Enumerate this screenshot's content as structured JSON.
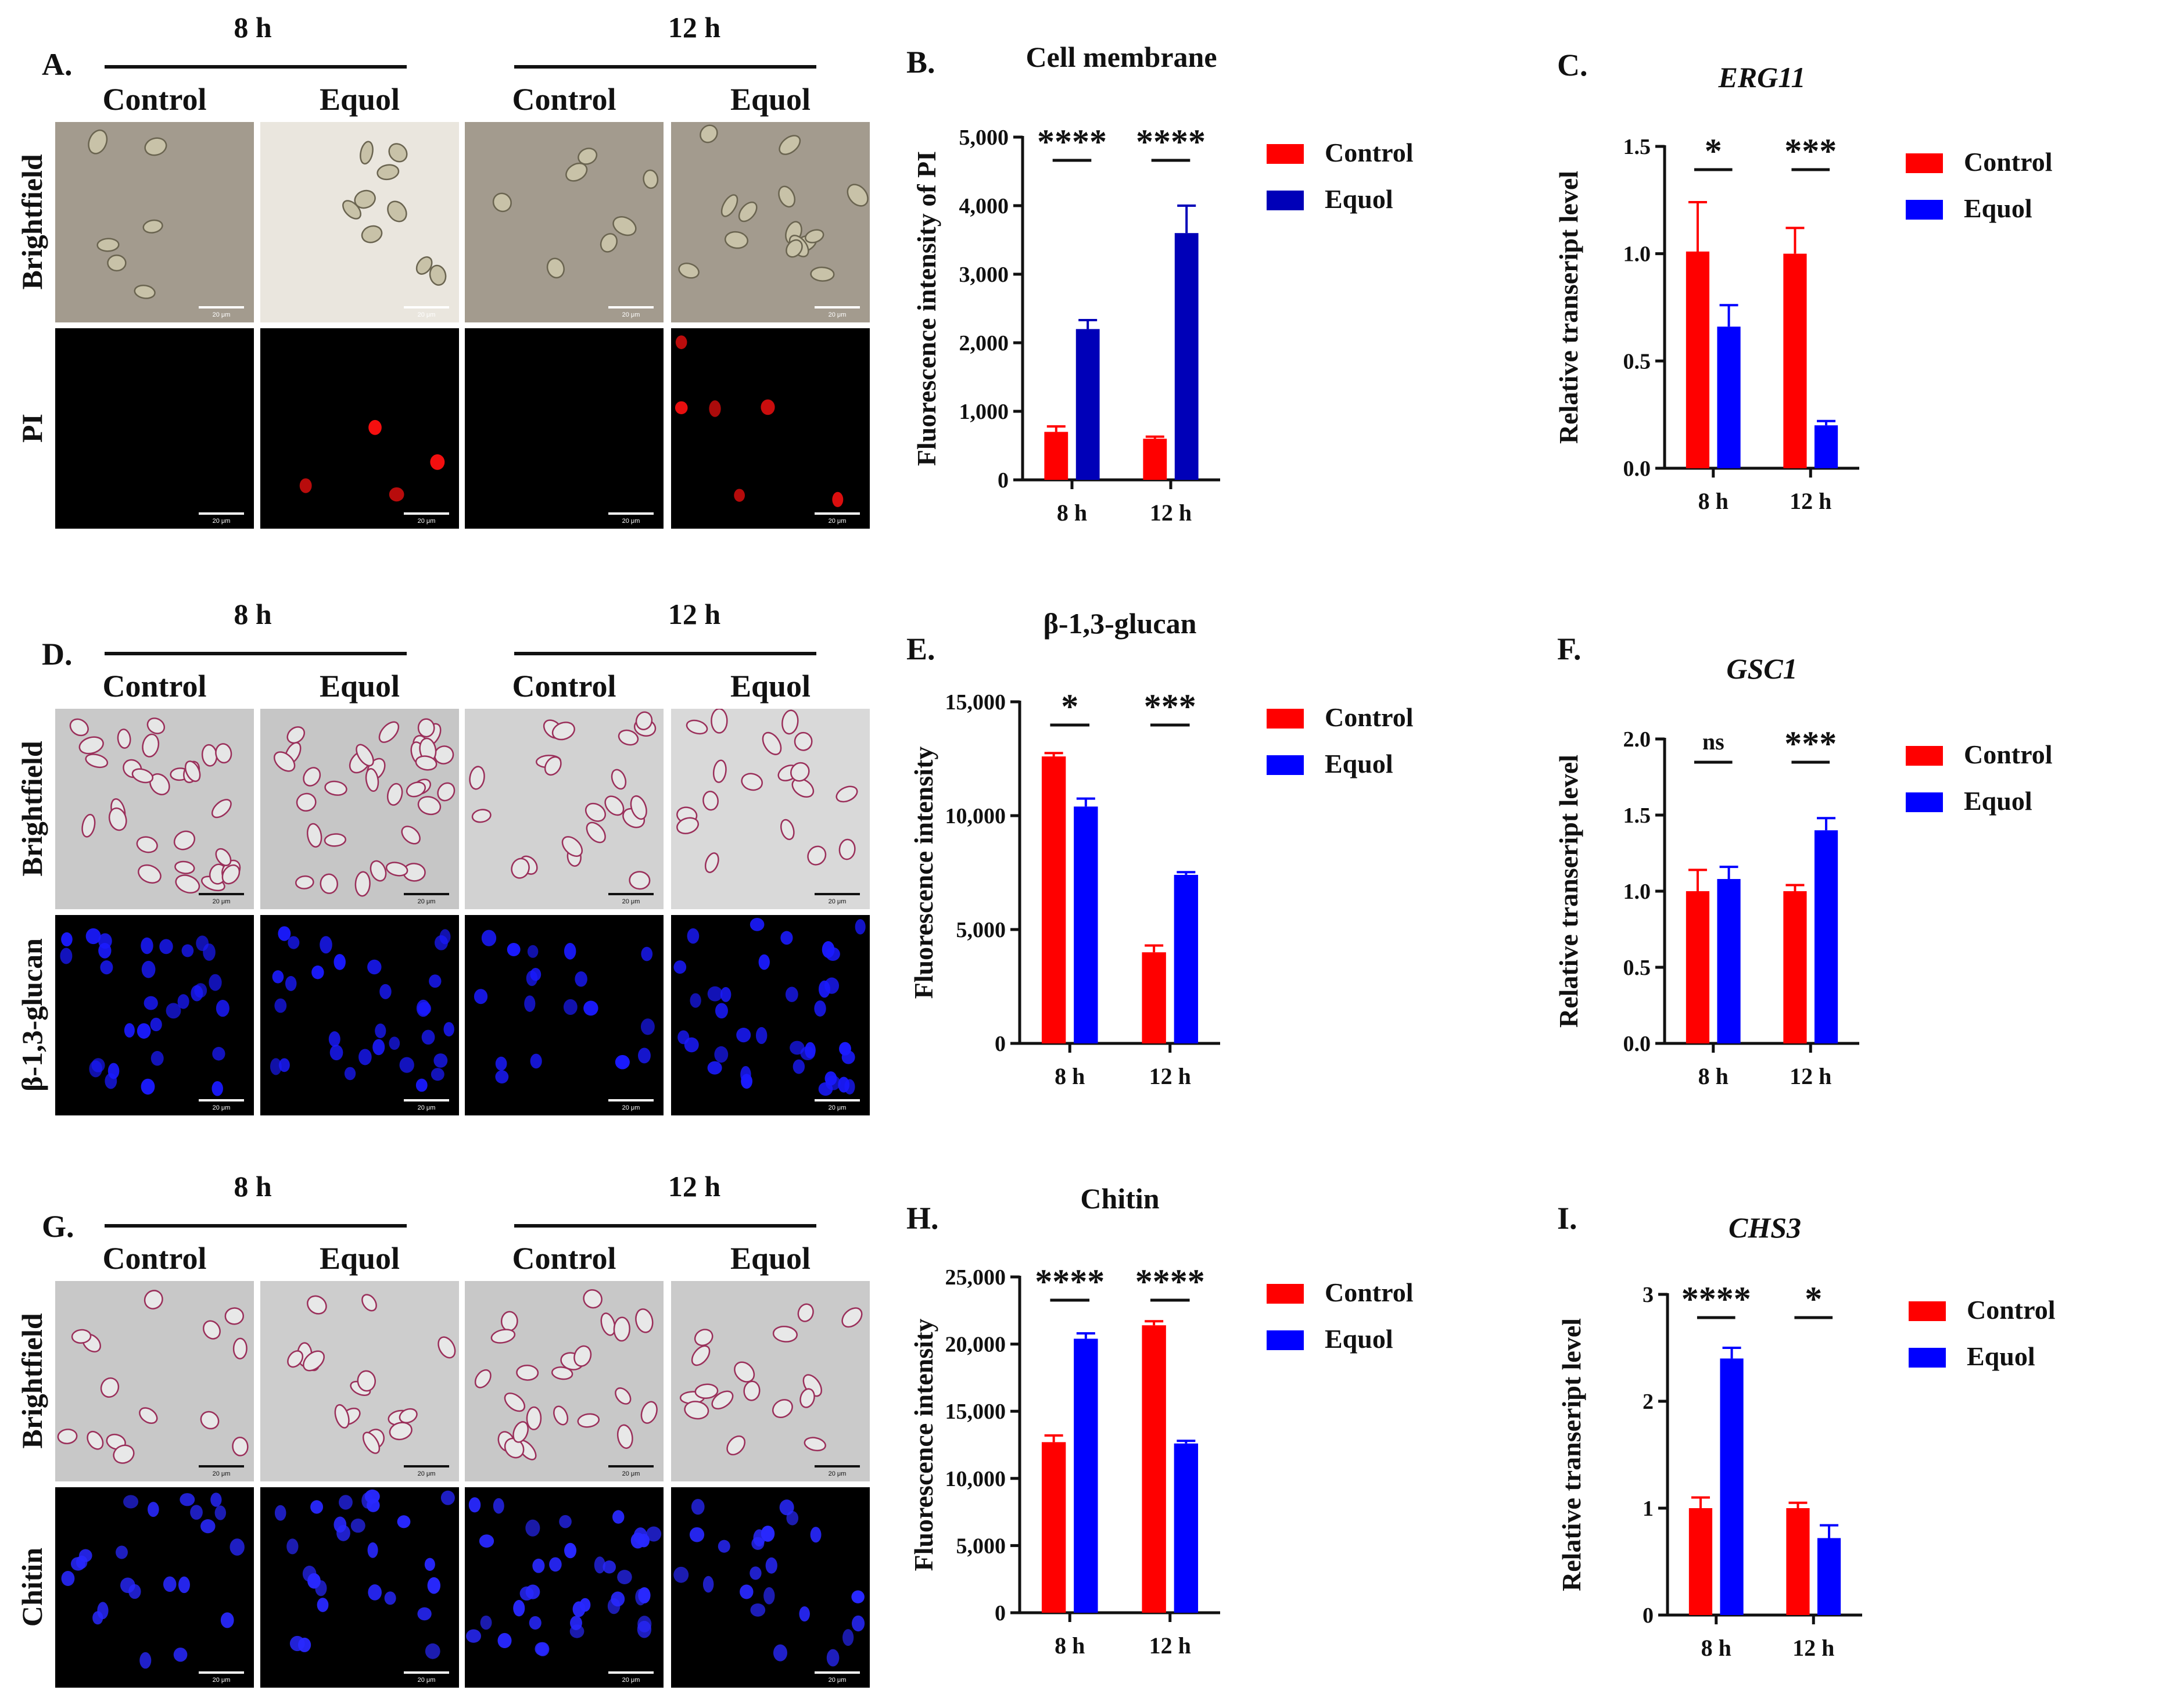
{
  "rows": [
    {
      "letter": "A.",
      "times": [
        "8 h",
        "12 h"
      ],
      "columns": [
        "Control",
        "Equol",
        "Control",
        "Equol"
      ],
      "row_labels": [
        "Brightfield",
        "PI"
      ],
      "scale_bar": "20 μm"
    },
    {
      "letter": "D.",
      "times": [
        "8 h",
        "12 h"
      ],
      "columns": [
        "Control",
        "Equol",
        "Control",
        "Equol"
      ],
      "row_labels": [
        "Brightfield",
        "β-1,3-glucan"
      ],
      "scale_bar": "20 μm"
    },
    {
      "letter": "G.",
      "times": [
        "8 h",
        "12 h"
      ],
      "columns": [
        "Control",
        "Equol",
        "Control",
        "Equol"
      ],
      "row_labels": [
        "Brightfield",
        "Chitin"
      ],
      "scale_bar": "20 μm"
    }
  ],
  "chart_data": [
    {
      "id": "B",
      "letter": "B.",
      "type": "bar",
      "title": "Cell membrane",
      "title_italic": false,
      "ylabel": "Fluorescence intensity of PI",
      "categories": [
        "8 h",
        "12 h"
      ],
      "ylim": [
        0,
        5000
      ],
      "yticks": [
        0,
        1000,
        2000,
        3000,
        4000,
        5000
      ],
      "ytick_labels": [
        "0",
        "1,000",
        "2,000",
        "3,000",
        "4,000",
        "5,000"
      ],
      "series": [
        {
          "name": "Control",
          "color": "#ff0000",
          "values": [
            700,
            600
          ],
          "errors": [
            80,
            30
          ]
        },
        {
          "name": "Equol",
          "color": "#0000b8",
          "values": [
            2200,
            3600
          ],
          "errors": [
            130,
            400
          ]
        }
      ],
      "significance": [
        "****",
        "****"
      ]
    },
    {
      "id": "C",
      "letter": "C.",
      "type": "bar",
      "title": "ERG11",
      "title_italic": true,
      "ylabel": "Relative transeript level",
      "categories": [
        "8 h",
        "12 h"
      ],
      "ylim": [
        0,
        1.5
      ],
      "yticks": [
        0,
        0.5,
        1.0,
        1.5
      ],
      "ytick_labels": [
        "0.0",
        "0.5",
        "1.0",
        "1.5"
      ],
      "series": [
        {
          "name": "Control",
          "color": "#ff0000",
          "values": [
            1.01,
            1.0
          ],
          "errors": [
            0.23,
            0.12
          ]
        },
        {
          "name": "Equol",
          "color": "#0000ff",
          "values": [
            0.66,
            0.2
          ],
          "errors": [
            0.1,
            0.02
          ]
        }
      ],
      "significance": [
        "*",
        "***"
      ]
    },
    {
      "id": "E",
      "letter": "E.",
      "type": "bar",
      "title": "β-1,3-glucan",
      "title_italic": false,
      "ylabel": "Fluorescence intensity",
      "categories": [
        "8 h",
        "12 h"
      ],
      "ylim": [
        0,
        15000
      ],
      "yticks": [
        0,
        5000,
        10000,
        15000
      ],
      "ytick_labels": [
        "0",
        "5,000",
        "10,000",
        "15,000"
      ],
      "series": [
        {
          "name": "Control",
          "color": "#ff0000",
          "values": [
            12600,
            4000
          ],
          "errors": [
            150,
            300
          ]
        },
        {
          "name": "Equol",
          "color": "#0000ff",
          "values": [
            10400,
            7400
          ],
          "errors": [
            350,
            120
          ]
        }
      ],
      "significance": [
        "*",
        "***"
      ]
    },
    {
      "id": "F",
      "letter": "F.",
      "type": "bar",
      "title": "GSC1",
      "title_italic": true,
      "ylabel": "Relative transeript level",
      "categories": [
        "8 h",
        "12 h"
      ],
      "ylim": [
        0,
        2.0
      ],
      "yticks": [
        0,
        0.5,
        1.0,
        1.5,
        2.0
      ],
      "ytick_labels": [
        "0.0",
        "0.5",
        "1.0",
        "1.5",
        "2.0"
      ],
      "series": [
        {
          "name": "Control",
          "color": "#ff0000",
          "values": [
            1.0,
            1.0
          ],
          "errors": [
            0.14,
            0.04
          ]
        },
        {
          "name": "Equol",
          "color": "#0000ff",
          "values": [
            1.08,
            1.4
          ],
          "errors": [
            0.08,
            0.08
          ]
        }
      ],
      "significance": [
        "ns",
        "***"
      ]
    },
    {
      "id": "H",
      "letter": "H.",
      "type": "bar",
      "title": "Chitin",
      "title_italic": false,
      "ylabel": "Fluorescence intensity",
      "categories": [
        "8 h",
        "12 h"
      ],
      "ylim": [
        0,
        25000
      ],
      "yticks": [
        0,
        5000,
        10000,
        15000,
        20000,
        25000
      ],
      "ytick_labels": [
        "0",
        "5,000",
        "10,000",
        "15,000",
        "20,000",
        "25,000"
      ],
      "series": [
        {
          "name": "Control",
          "color": "#ff0000",
          "values": [
            12700,
            21400
          ],
          "errors": [
            500,
            300
          ]
        },
        {
          "name": "Equol",
          "color": "#0000ff",
          "values": [
            20400,
            12600
          ],
          "errors": [
            400,
            200
          ]
        }
      ],
      "significance": [
        "****",
        "****"
      ]
    },
    {
      "id": "I",
      "letter": "I.",
      "type": "bar",
      "title": "CHS3",
      "title_italic": true,
      "ylabel": "Relative transeript level",
      "categories": [
        "8 h",
        "12 h"
      ],
      "ylim": [
        0,
        3
      ],
      "yticks": [
        0,
        1,
        2,
        3
      ],
      "ytick_labels": [
        "0",
        "1",
        "2",
        "3"
      ],
      "series": [
        {
          "name": "Control",
          "color": "#ff0000",
          "values": [
            1.0,
            1.0
          ],
          "errors": [
            0.1,
            0.05
          ]
        },
        {
          "name": "Equol",
          "color": "#0000ff",
          "values": [
            2.4,
            0.72
          ],
          "errors": [
            0.1,
            0.12
          ]
        }
      ],
      "significance": [
        "****",
        "*"
      ]
    }
  ]
}
